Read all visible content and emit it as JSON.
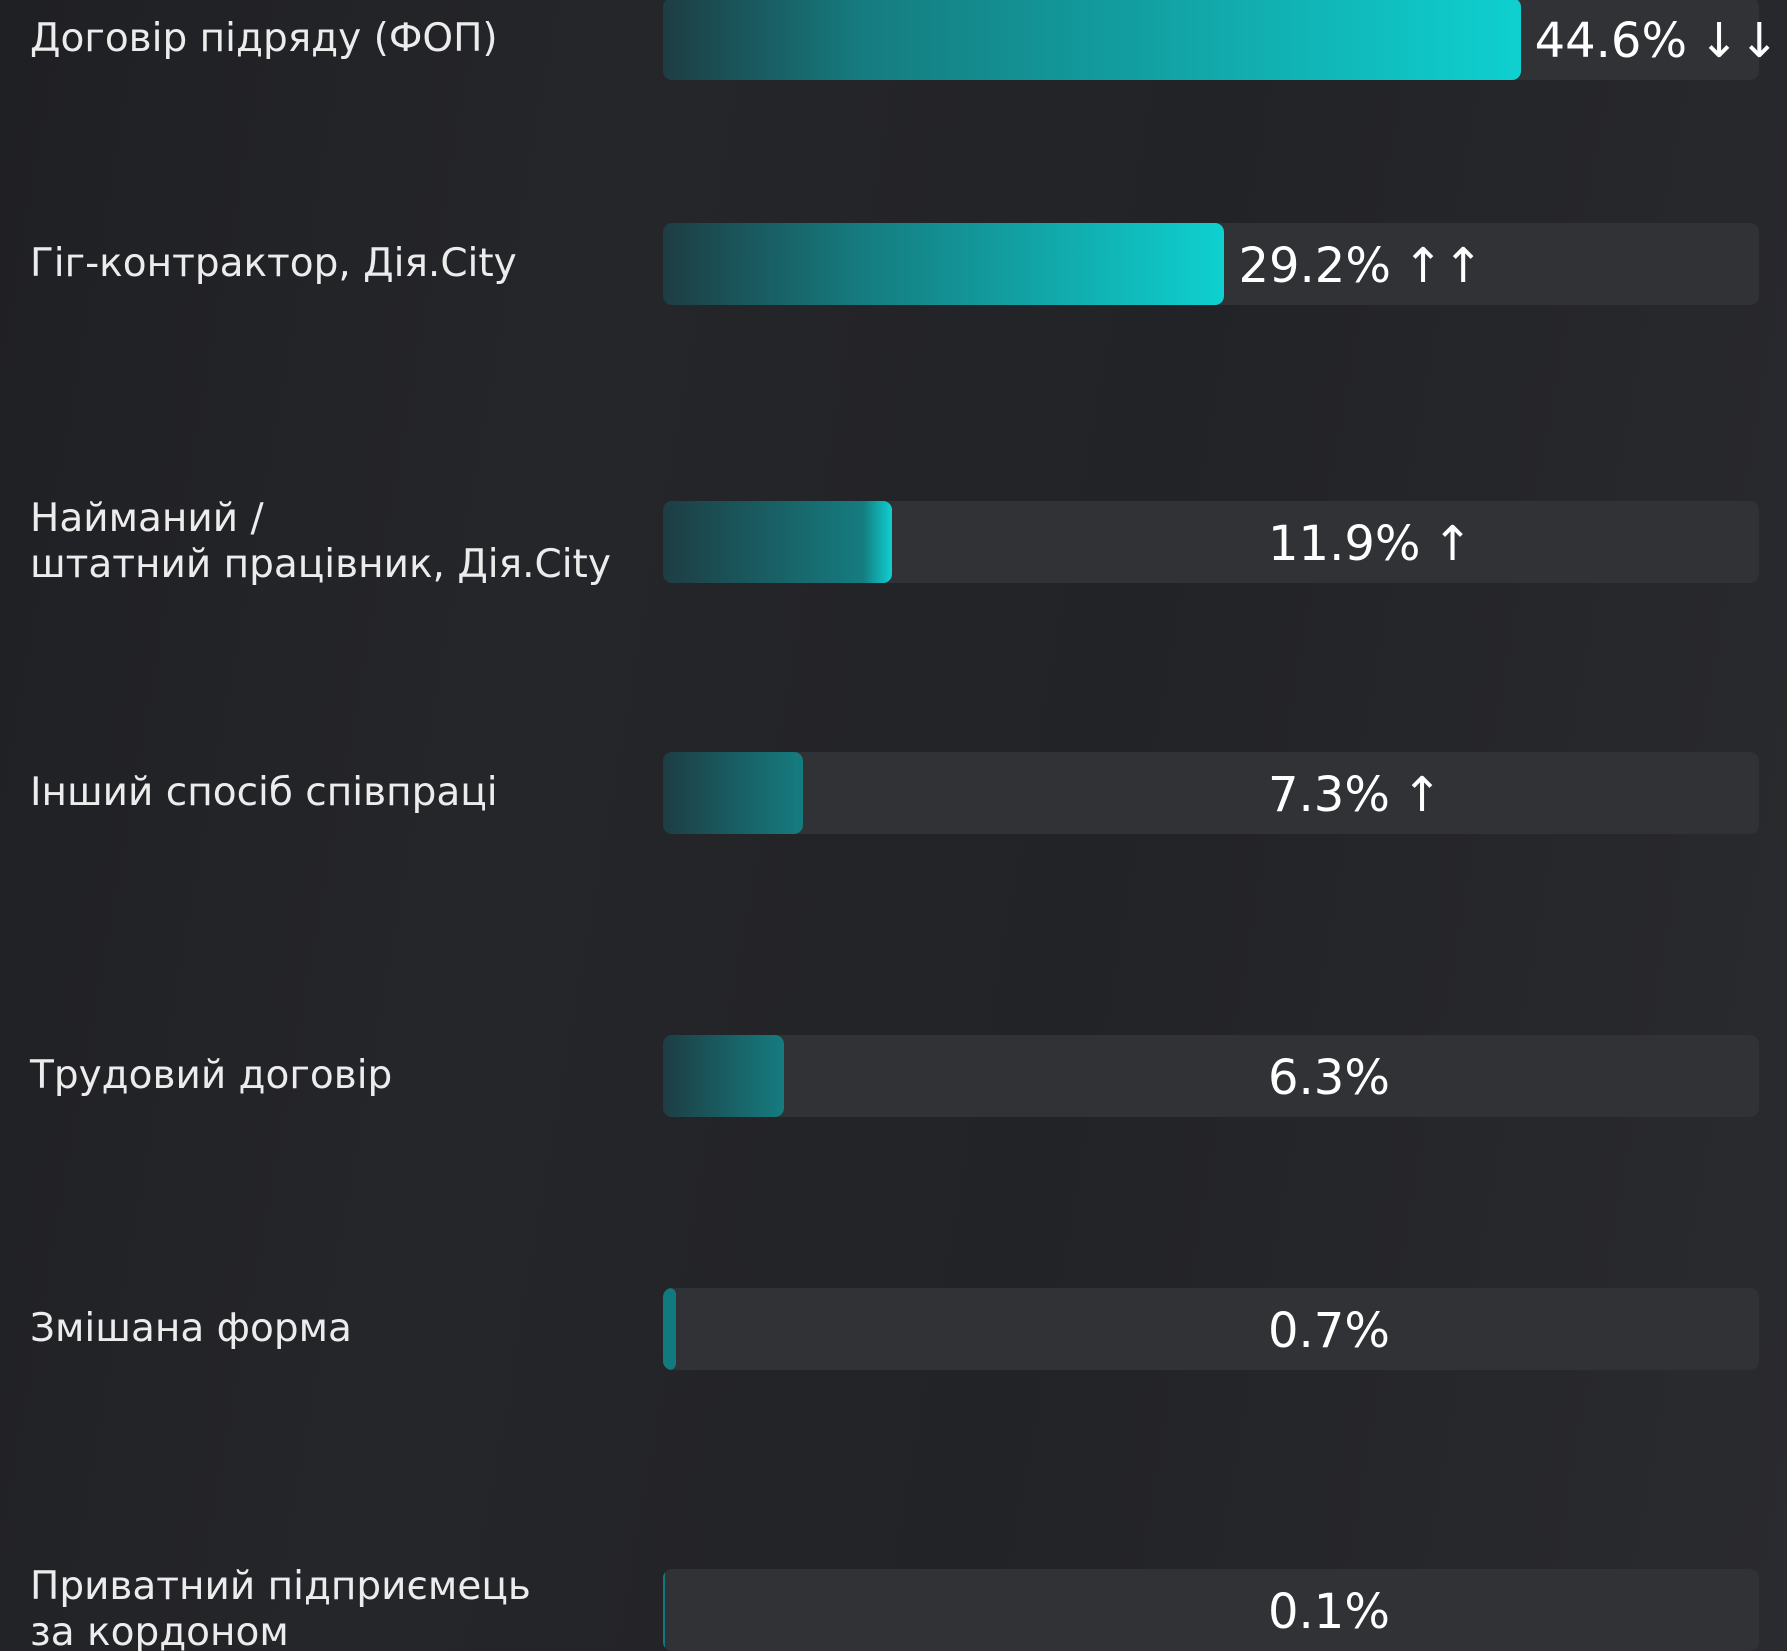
{
  "chart_data": {
    "type": "bar",
    "orientation": "horizontal",
    "categories": [
      "Договір підряду (ФОП)",
      "Гіг-контрактор, Дія.City",
      "Найманий /\nштатний працівник, Дія.City",
      "Інший спосіб співпраці",
      "Трудовий договір",
      "Змішана форма",
      "Приватний підприємець\nза кордоном"
    ],
    "values": [
      44.6,
      29.2,
      11.9,
      7.3,
      6.3,
      0.7,
      0.1
    ],
    "value_labels": [
      "44.6%",
      "29.2%",
      "11.9%",
      "7.3%",
      "6.3%",
      "0.7%",
      "0.1%"
    ],
    "trends": [
      "↓↓",
      "↑↑",
      "↑",
      "↑",
      null,
      null,
      null
    ],
    "xlim": [
      0,
      57
    ],
    "color": "#0fd0d0",
    "track_color": "#313236"
  }
}
